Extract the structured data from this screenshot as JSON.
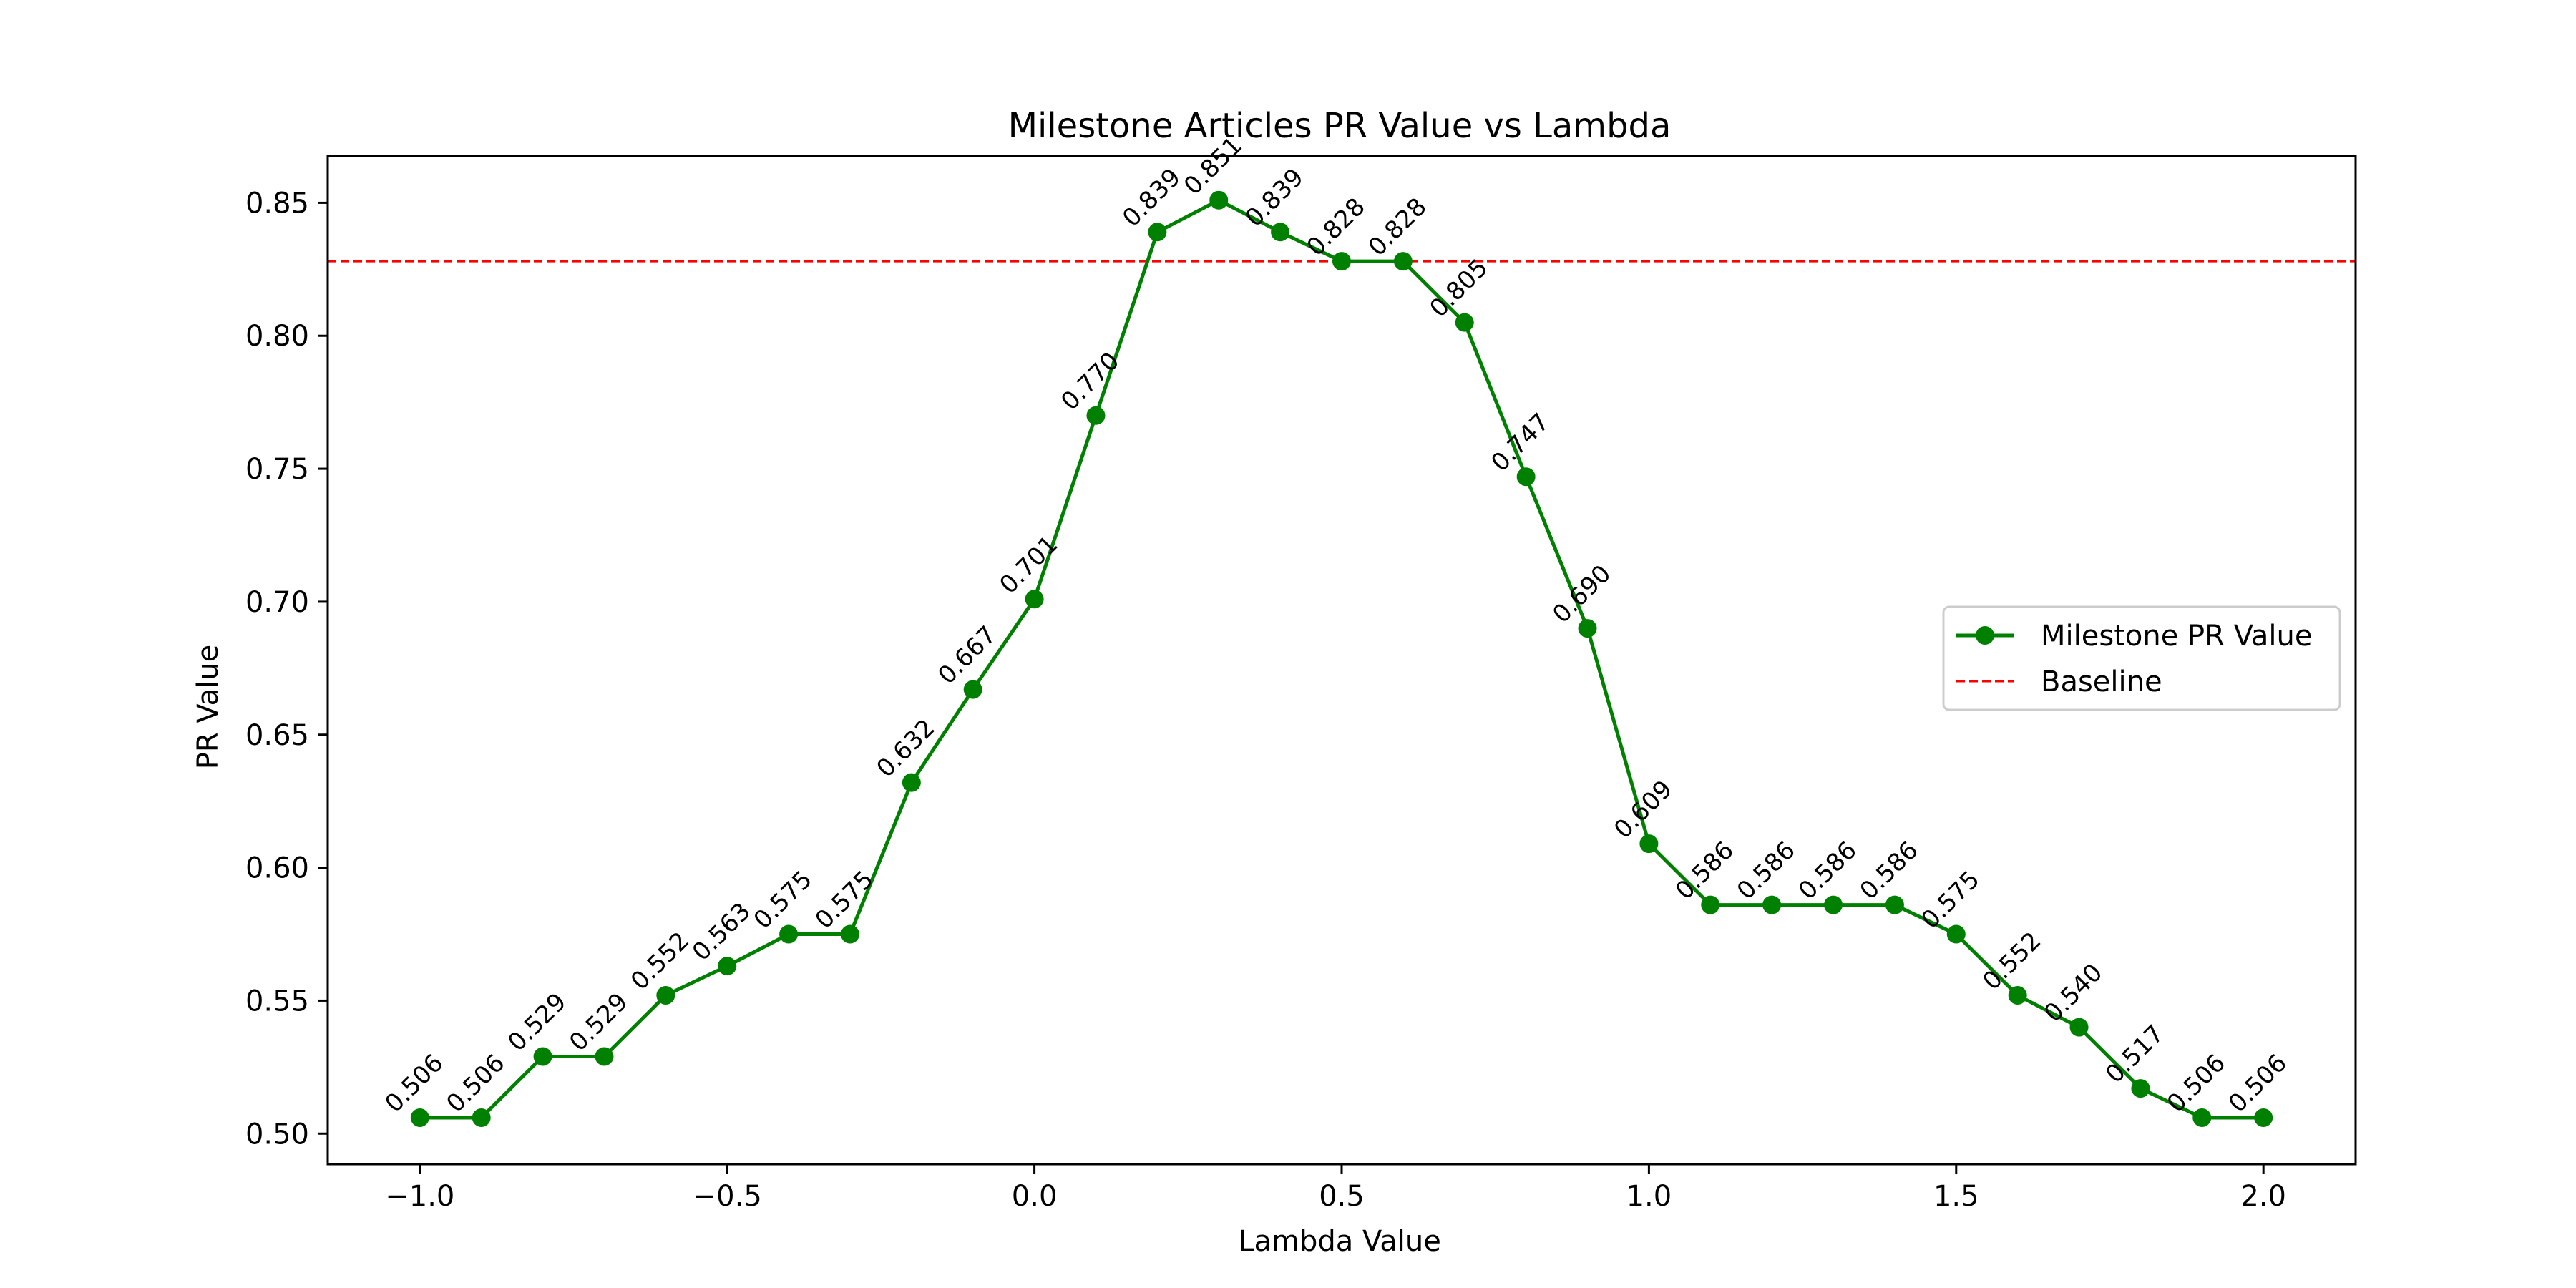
{
  "chart_data": {
    "type": "line",
    "title": "Milestone Articles PR Value vs Lambda",
    "xlabel": "Lambda Value",
    "ylabel": "PR Value",
    "xlim": [
      -1.15,
      2.15
    ],
    "ylim": [
      0.4885,
      0.8676
    ],
    "xticks": [
      -1.0,
      -0.5,
      0.0,
      0.5,
      1.0,
      1.5,
      2.0
    ],
    "xtick_labels": [
      "−1.0",
      "−0.5",
      "0.0",
      "0.5",
      "1.0",
      "1.5",
      "2.0"
    ],
    "yticks": [
      0.5,
      0.55,
      0.6,
      0.65,
      0.7,
      0.75,
      0.8,
      0.85
    ],
    "ytick_labels": [
      "0.50",
      "0.55",
      "0.60",
      "0.65",
      "0.70",
      "0.75",
      "0.80",
      "0.85"
    ],
    "grid": false,
    "legend_position": "center-right",
    "series": [
      {
        "name": "Milestone PR Value",
        "color": "#008000",
        "marker": "circle",
        "x": [
          -1.0,
          -0.9,
          -0.8,
          -0.7,
          -0.6,
          -0.5,
          -0.4,
          -0.3,
          -0.2,
          -0.1,
          0.0,
          0.1,
          0.2,
          0.3,
          0.4,
          0.5,
          0.6,
          0.7,
          0.8,
          0.9,
          1.0,
          1.1,
          1.2,
          1.3,
          1.4,
          1.5,
          1.6,
          1.7,
          1.8,
          1.9,
          2.0
        ],
        "values": [
          0.506,
          0.506,
          0.529,
          0.529,
          0.552,
          0.563,
          0.575,
          0.575,
          0.632,
          0.667,
          0.701,
          0.77,
          0.839,
          0.851,
          0.839,
          0.828,
          0.828,
          0.805,
          0.747,
          0.69,
          0.609,
          0.586,
          0.586,
          0.586,
          0.586,
          0.575,
          0.552,
          0.54,
          0.517,
          0.506,
          0.506
        ],
        "labels": [
          "0.506",
          "0.506",
          "0.529",
          "0.529",
          "0.552",
          "0.563",
          "0.575",
          "0.575",
          "0.632",
          "0.667",
          "0.701",
          "0.770",
          "0.839",
          "0.851",
          "0.839",
          "0.828",
          "0.828",
          "0.805",
          "0.747",
          "0.690",
          "0.609",
          "0.586",
          "0.586",
          "0.586",
          "0.586",
          "0.575",
          "0.552",
          "0.540",
          "0.517",
          "0.506",
          "0.506"
        ]
      }
    ],
    "baseline": {
      "name": "Baseline",
      "value": 0.828,
      "color": "#ff0000",
      "style": "dashed"
    }
  }
}
